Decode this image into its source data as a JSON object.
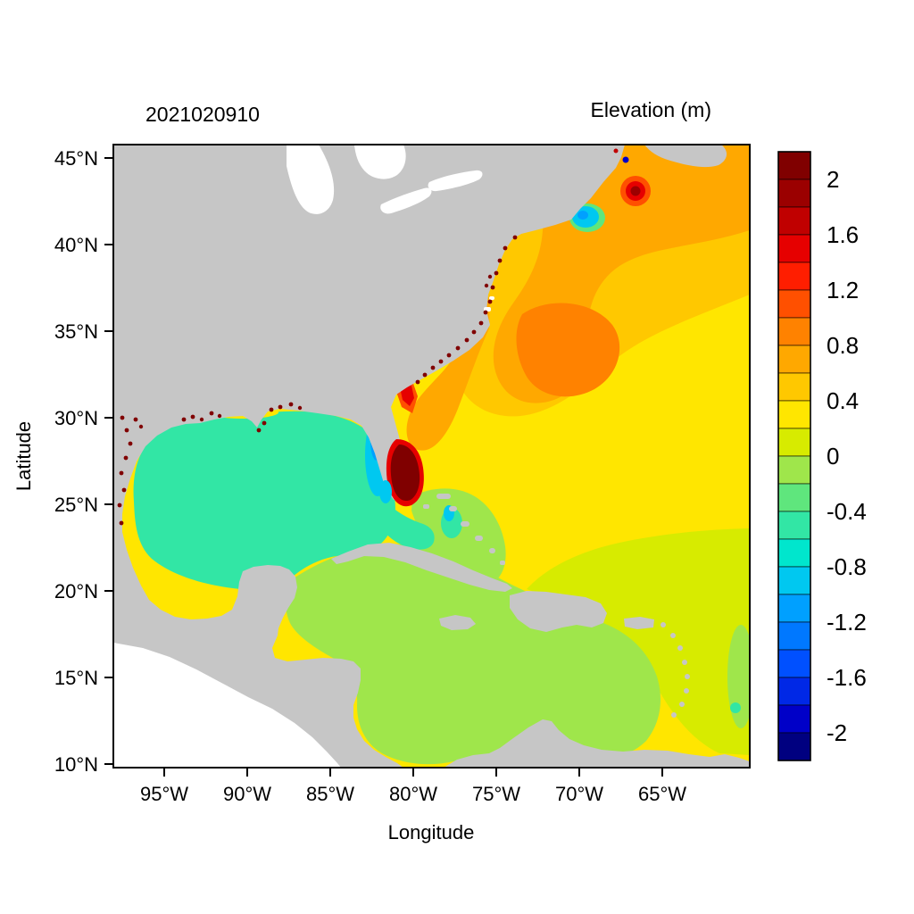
{
  "palette": {
    "land": "#C6C6C6",
    "lake_and_outside": "#FFFFFF",
    "speckle": "#800000",
    "frame": "#000000"
  },
  "chart_data": {
    "type": "heatmap",
    "title": "2021020910",
    "colorbar_title": "Elevation (m)",
    "xlabel": "Longitude",
    "ylabel": "Latitude",
    "x_ticks": [
      "95°W",
      "90°W",
      "85°W",
      "80°W",
      "75°W",
      "70°W",
      "65°W"
    ],
    "y_ticks": [
      "45°N",
      "40°N",
      "35°N",
      "30°N",
      "25°N",
      "20°N",
      "15°N",
      "10°N"
    ],
    "x_range_deg_w": [
      98.5,
      60.0
    ],
    "y_range_deg_n": [
      9.5,
      45.8
    ],
    "colorbar": {
      "tick_labels": [
        "2",
        "1.6",
        "1.2",
        "0.8",
        "0.4",
        "0",
        "-0.4",
        "-0.8",
        "-1.2",
        "-1.6",
        "-2"
      ],
      "tick_values": [
        2,
        1.6,
        1.2,
        0.8,
        0.4,
        0,
        -0.4,
        -0.8,
        -1.2,
        -1.6,
        -2
      ],
      "band_step": 0.2,
      "value_range": [
        -2.2,
        2.2
      ],
      "colors": [
        "#800000",
        "#9B0000",
        "#C00000",
        "#E60000",
        "#FF1E00",
        "#FF5000",
        "#FF8200",
        "#FFA800",
        "#FFC800",
        "#FFE600",
        "#D7EB00",
        "#9FE64B",
        "#5FE67D",
        "#32E6A5",
        "#00E6CD",
        "#00C8F0",
        "#00A0FF",
        "#0078FF",
        "#0050FF",
        "#0028E6",
        "#0000C8",
        "#000080"
      ],
      "orientation": "vertical-right"
    },
    "regions": [
      {
        "area": "Gulf of Mexico",
        "approx_elevation_m": -0.3
      },
      {
        "area": "Caribbean Sea",
        "approx_elevation_m": 0.1
      },
      {
        "area": "Central North Atlantic",
        "approx_elevation_m": 0.5
      },
      {
        "area": "Mid-Atlantic / upper-right basin",
        "approx_elevation_m": 0.7
      },
      {
        "area": "Offshore lobe east of Carolinas",
        "approx_elevation_m": 0.9
      },
      {
        "area": "Gulf of Maine hotspot near 66W 43.5N",
        "approx_elevation_m": 1.9
      },
      {
        "area": "Georgia coastal band near 81W 31N",
        "approx_elevation_m": 1.2
      },
      {
        "area": "South Florida coastal patch near 80W 26N",
        "approx_elevation_m": 2.1
      },
      {
        "area": "West Florida shelf band",
        "approx_elevation_m": -0.7
      },
      {
        "area": "Nantucket Shoals patch near 70W 41N",
        "approx_elevation_m": -0.7
      },
      {
        "area": "Southeastern tropical Atlantic",
        "approx_elevation_m": 0.3
      },
      {
        "area": "Coastal flooded cells (dark red speckles along Gulf and SE coasts)",
        "approx_elevation_m": 2.0
      }
    ],
    "grid": false,
    "legend_position": "right-colorbar"
  }
}
